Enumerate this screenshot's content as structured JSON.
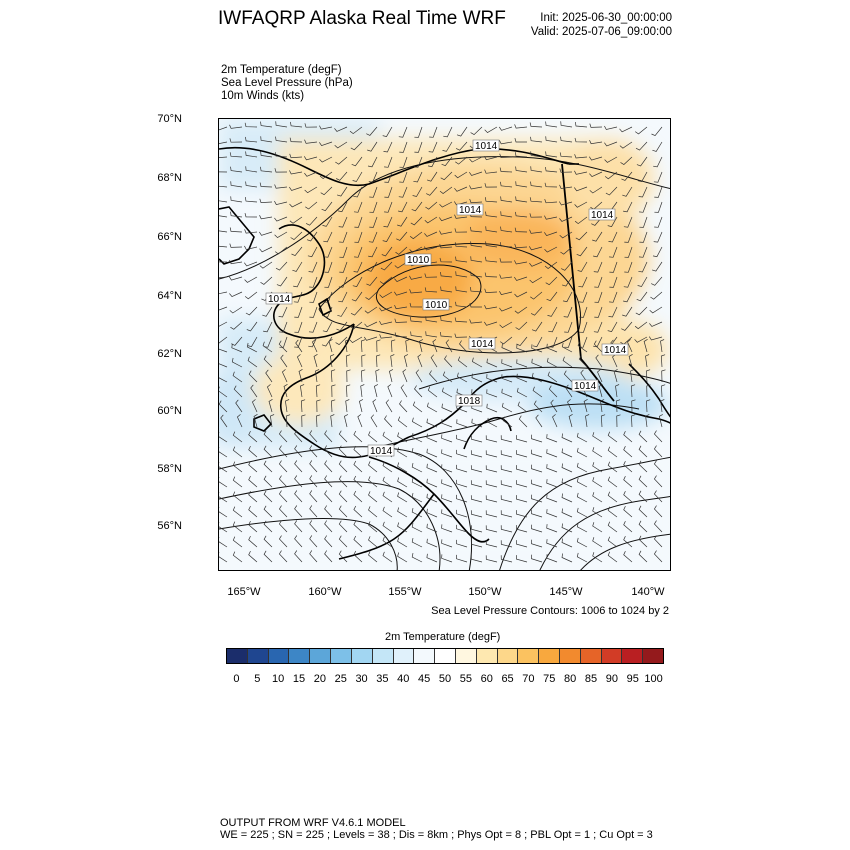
{
  "header": {
    "title": "IWFAQRP Alaska Real Time WRF",
    "init": "Init: 2025-06-30_00:00:00",
    "valid": "Valid: 2025-07-06_09:00:00"
  },
  "fields": [
    "2m Temperature   (degF)",
    "Sea Level Pressure   (hPa)",
    "10m Winds   (kts)"
  ],
  "axes": {
    "lat_labels": [
      "70°N",
      "68°N",
      "66°N",
      "64°N",
      "62°N",
      "60°N",
      "58°N",
      "56°N"
    ],
    "lon_labels": [
      "165°W",
      "160°W",
      "155°W",
      "150°W",
      "145°W",
      "140°W"
    ]
  },
  "pressure_labels": [
    "1014",
    "1014",
    "1014",
    "1010",
    "1010",
    "1014",
    "1014",
    "1014",
    "1014",
    "1018",
    "1014"
  ],
  "contour_note": "Sea Level Pressure Contours: 1006 to 1024 by 2",
  "colorbar": {
    "title": "2m Temperature  (degF)",
    "labels": [
      "0",
      "5",
      "10",
      "15",
      "20",
      "25",
      "30",
      "35",
      "40",
      "45",
      "50",
      "55",
      "60",
      "65",
      "70",
      "75",
      "80",
      "85",
      "90",
      "95",
      "100"
    ],
    "colors": [
      "#1b2d6b",
      "#1f4690",
      "#2966b0",
      "#3d86c6",
      "#5ca6d9",
      "#7dc0e8",
      "#a2d6f2",
      "#c4e6f7",
      "#e0f1fb",
      "#f3f9fd",
      "#ffffff",
      "#fff7e0",
      "#fee8b0",
      "#fdd78a",
      "#fbc260",
      "#f8a83e",
      "#f28a2e",
      "#e66428",
      "#d23c26",
      "#b91f22",
      "#941a1c"
    ]
  },
  "footer": {
    "line1": "OUTPUT FROM WRF V4.6.1 MODEL",
    "line2": "WE = 225 ; SN = 225 ; Levels = 38 ; Dis = 8km ; Phys Opt = 8 ; PBL Opt = 1 ; Cu Opt = 3"
  }
}
